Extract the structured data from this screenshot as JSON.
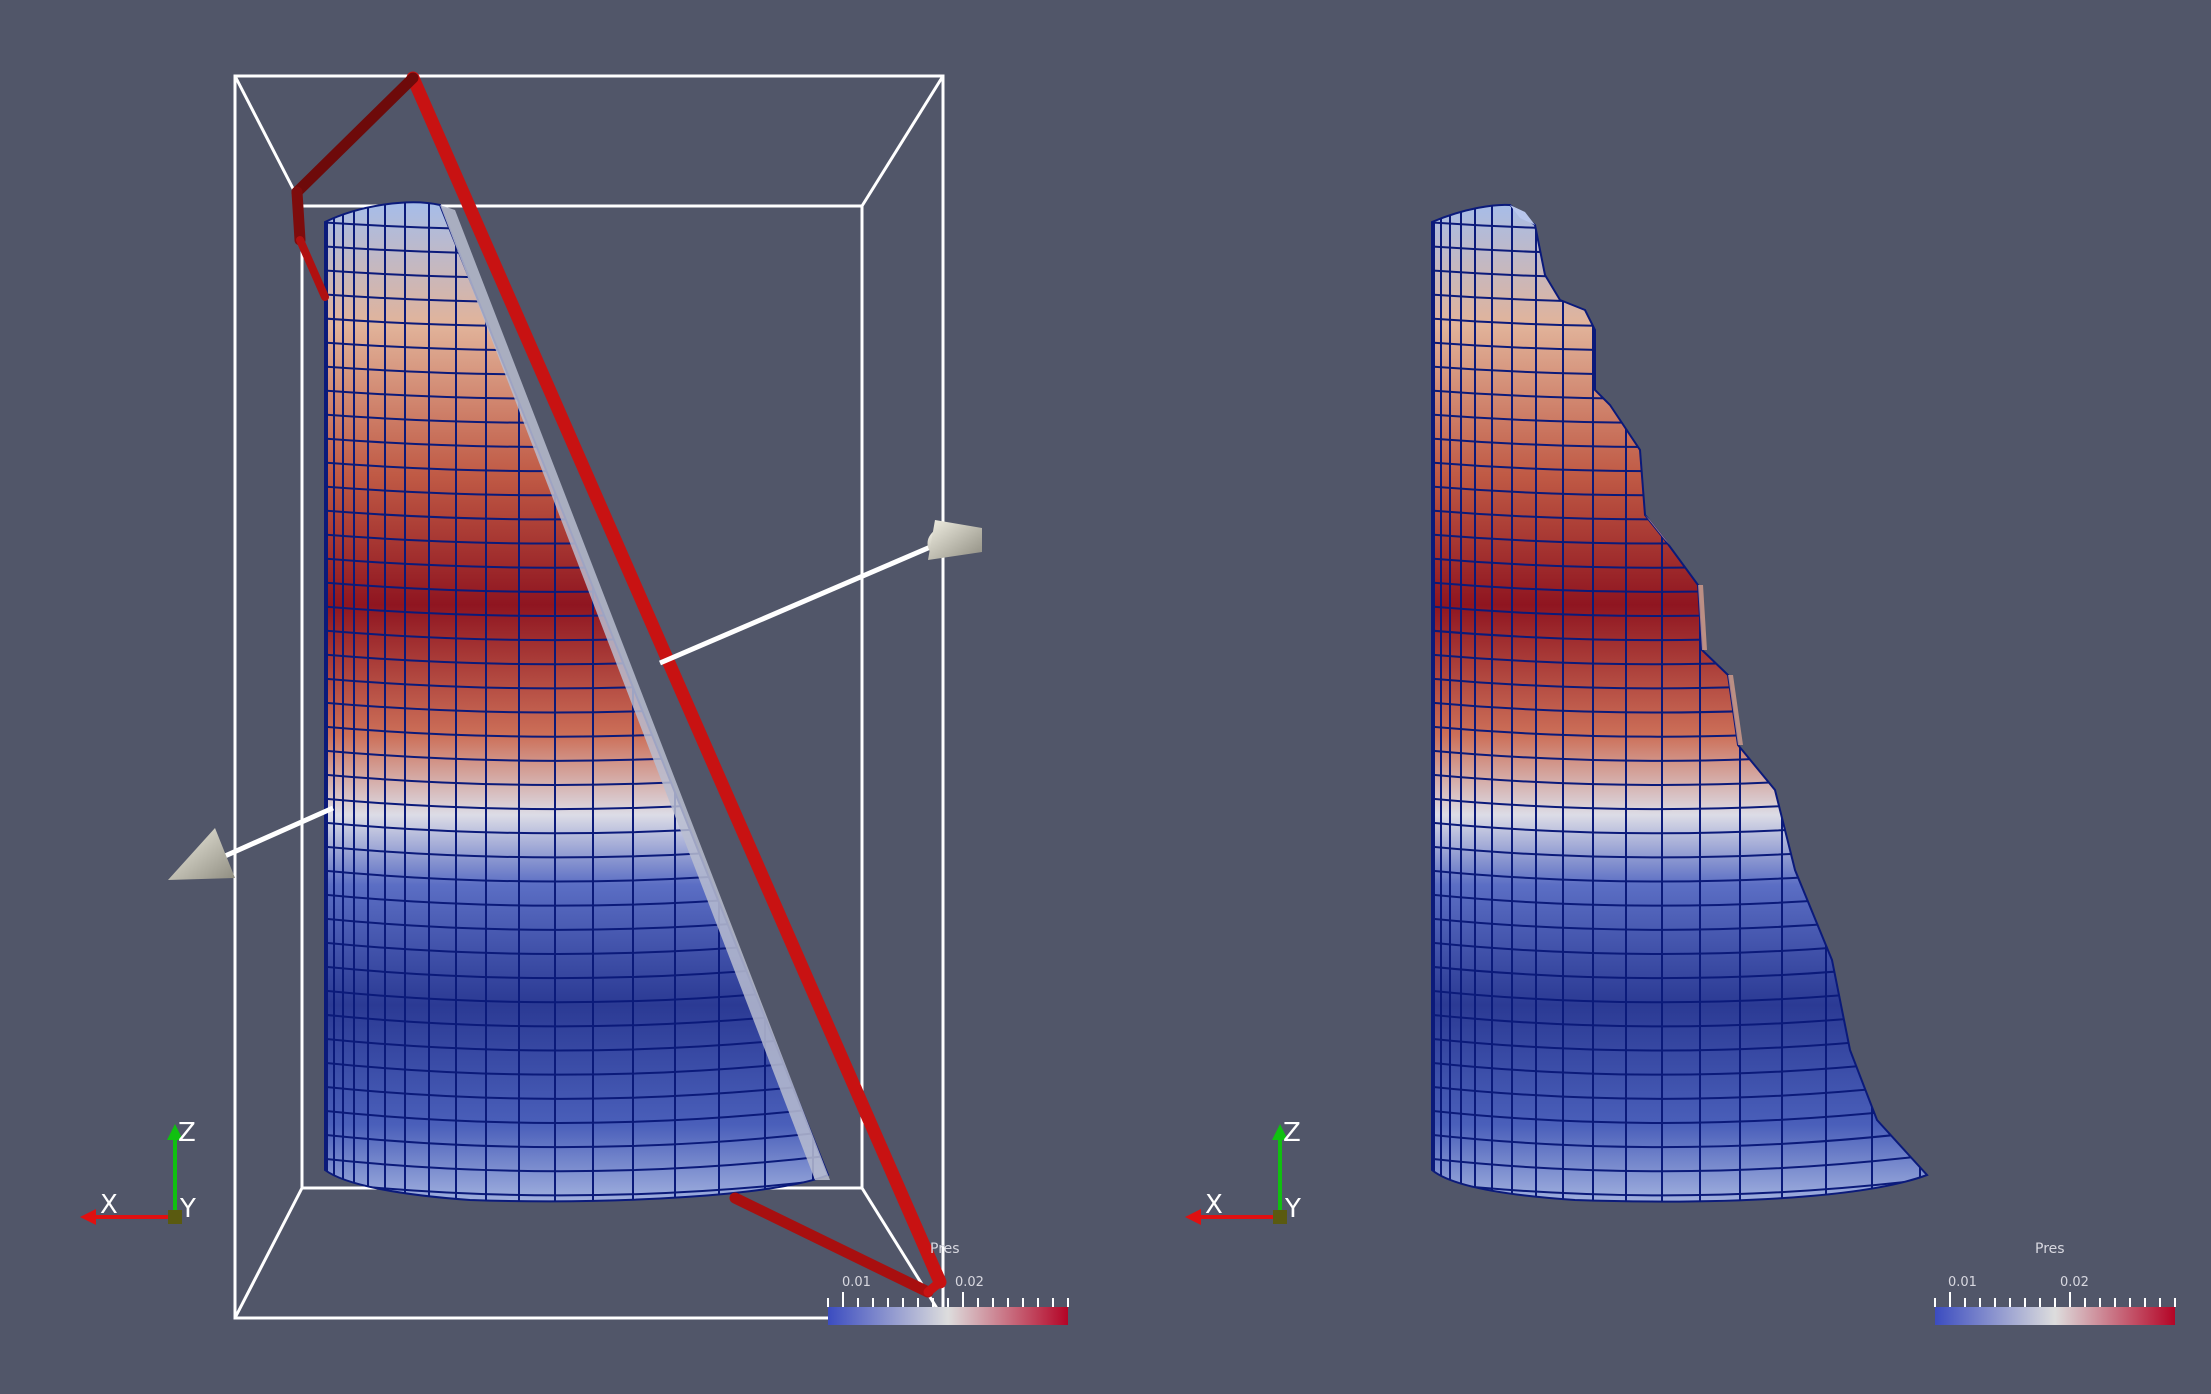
{
  "app": {
    "views": [
      {
        "id": "left",
        "legend": {
          "title": "Pres",
          "tick_left": "0.01",
          "tick_right": "0.02"
        },
        "orientation_axes": {
          "x": "X",
          "y": "Y",
          "z": "Z"
        }
      },
      {
        "id": "right",
        "legend": {
          "title": "Pres",
          "tick_left": "0.01",
          "tick_right": "0.02"
        },
        "orientation_axes": {
          "x": "X",
          "y": "Y",
          "z": "Z"
        }
      }
    ]
  },
  "colors": {
    "background": "#515669",
    "colormap_low": "#3b4cc0",
    "colormap_mid": "#dddddd",
    "colormap_high": "#b40426",
    "mesh_lines": "#0b1a7a",
    "plane_widget": "#cc1010",
    "axis_x": "#e01010",
    "axis_y": "#10c010",
    "axis_z": "#10c010"
  },
  "icons": [
    "plane-widget-icon",
    "normal-arrow-icon",
    "orientation-axes-icon",
    "color-legend-icon"
  ]
}
